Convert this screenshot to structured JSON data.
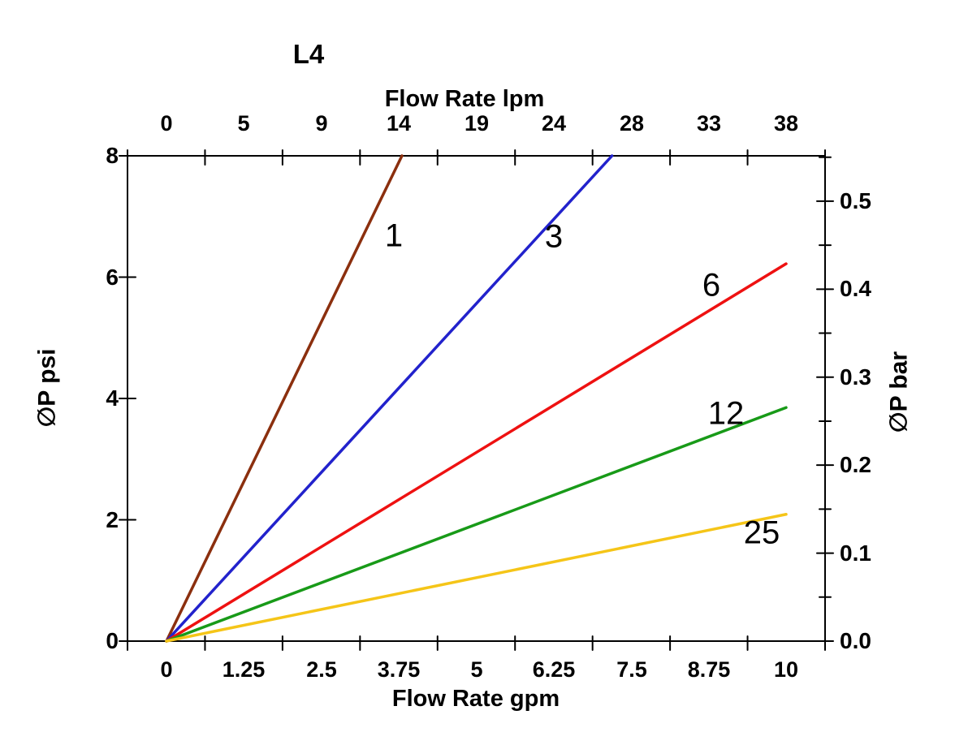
{
  "title": "L4",
  "chart_data": {
    "type": "line",
    "title": "L4",
    "grid": false,
    "legend": "none (labels placed on lines)",
    "x_axis_top": {
      "label": "Flow Rate lpm",
      "ticks": [
        "0",
        "5",
        "9",
        "14",
        "19",
        "24",
        "28",
        "33",
        "38"
      ]
    },
    "x_axis_bottom": {
      "label": "Flow Rate gpm",
      "ticks": [
        "0",
        "1.25",
        "2.5",
        "3.75",
        "5",
        "6.25",
        "7.5",
        "8.75",
        "10"
      ],
      "range_gpm": [
        0,
        10
      ]
    },
    "y_axis_left": {
      "label": "∅P psi",
      "ticks": [
        "8",
        "6",
        "4",
        "2",
        "0"
      ],
      "range_psi": [
        0,
        8
      ]
    },
    "y_axis_right": {
      "label": "∅P bar",
      "ticks": [
        "0.5",
        "0.4",
        "0.3",
        "0.2",
        "0.1",
        "0.0"
      ],
      "minor_step_bar": 0.05,
      "psi_per_bar": 14.5038
    },
    "series": [
      {
        "name": "1",
        "color": "#8B2F0E",
        "points_gpm_psi": [
          [
            0,
            0
          ],
          [
            3.8,
            8.0
          ]
        ]
      },
      {
        "name": "3",
        "color": "#2222CC",
        "points_gpm_psi": [
          [
            0,
            0
          ],
          [
            7.19,
            8.0
          ]
        ]
      },
      {
        "name": "6",
        "color": "#EE1111",
        "points_gpm_psi": [
          [
            0,
            0
          ],
          [
            10,
            6.22
          ]
        ]
      },
      {
        "name": "12",
        "color": "#189A18",
        "points_gpm_psi": [
          [
            0,
            0
          ],
          [
            10,
            3.85
          ]
        ]
      },
      {
        "name": "25",
        "color": "#F5C518",
        "points_gpm_psi": [
          [
            0,
            0
          ],
          [
            10,
            2.09
          ]
        ]
      }
    ],
    "axis_color": "#000000"
  }
}
